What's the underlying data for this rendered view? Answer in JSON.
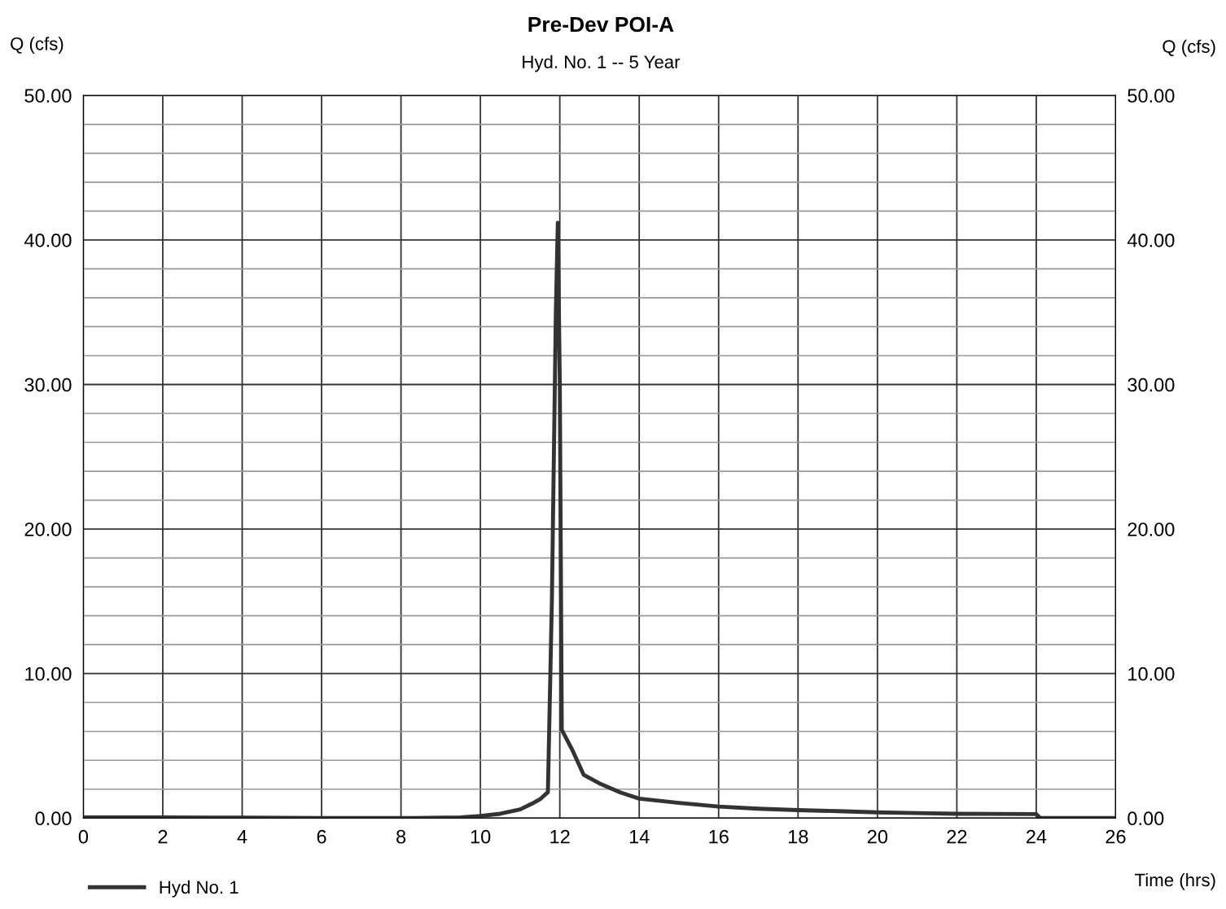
{
  "chart_data": {
    "type": "line",
    "title": "Pre-Dev POI-A",
    "subtitle": "Hyd. No. 1 -- 5 Year",
    "xlabel": "Time (hrs)",
    "ylabel": "Q (cfs)",
    "y2label": "Q (cfs)",
    "series": [
      {
        "name": "Hyd No. 1",
        "color": "#333333",
        "x": [
          0,
          2,
          4,
          6,
          8,
          9.5,
          10,
          10.5,
          11,
          11.3,
          11.5,
          11.7,
          11.8,
          11.9,
          11.95,
          12.0,
          12.05,
          12.3,
          12.6,
          13,
          13.5,
          14,
          15,
          16,
          17,
          18,
          19,
          20,
          21,
          22,
          23,
          24,
          24.1,
          26
        ],
        "values": [
          0.05,
          0.05,
          0.03,
          0,
          0,
          0.05,
          0.15,
          0.3,
          0.6,
          1.0,
          1.3,
          1.8,
          15.0,
          35.0,
          41.2,
          30.0,
          6.1,
          4.8,
          3.0,
          2.4,
          1.8,
          1.35,
          1.05,
          0.8,
          0.65,
          0.55,
          0.48,
          0.4,
          0.35,
          0.3,
          0.29,
          0.28,
          0,
          0
        ]
      }
    ],
    "xlim": [
      0,
      26
    ],
    "xticks": [
      0,
      2,
      4,
      6,
      8,
      10,
      12,
      14,
      16,
      18,
      20,
      22,
      24,
      26
    ],
    "ylim": [
      0,
      50
    ],
    "yticks": [
      {
        "value": 0,
        "label": "0.00"
      },
      {
        "value": 10,
        "label": "10.00"
      },
      {
        "value": 20,
        "label": "20.00"
      },
      {
        "value": 30,
        "label": "30.00"
      },
      {
        "value": 40,
        "label": "40.00"
      },
      {
        "value": 50,
        "label": "50.00"
      }
    ],
    "y2lim": [
      0,
      50
    ],
    "y2ticks": [
      {
        "value": 0,
        "label": "0.00"
      },
      {
        "value": 10,
        "label": "10.00"
      },
      {
        "value": 20,
        "label": "20.00"
      },
      {
        "value": 30,
        "label": "30.00"
      },
      {
        "value": 40,
        "label": "40.00"
      },
      {
        "value": 50,
        "label": "50.00"
      }
    ],
    "grid": true,
    "legend": "bottom left",
    "marker": "none",
    "line_style": "solid"
  }
}
